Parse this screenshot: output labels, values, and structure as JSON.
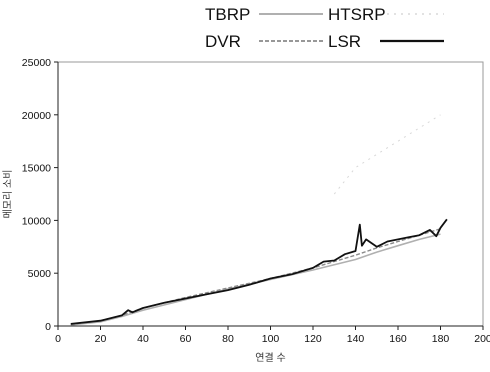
{
  "chart_data": {
    "type": "line",
    "title": "",
    "xlabel": "연결 수",
    "ylabel": "메모리 소비",
    "xlim": [
      0,
      200
    ],
    "ylim": [
      0,
      25000
    ],
    "xticks": [
      0,
      20,
      40,
      60,
      80,
      100,
      120,
      140,
      160,
      180,
      200
    ],
    "yticks": [
      0,
      5000,
      10000,
      15000,
      20000,
      25000
    ],
    "grid": false,
    "legend": "top",
    "colors": {
      "TBRP": "#b0b0b0",
      "HTSRP": "#d8d8d8",
      "DVR": "#8a8a8a",
      "LSR": "#111111"
    },
    "series": [
      {
        "name": "TBRP",
        "x": [
          6,
          20,
          30,
          40,
          60,
          80,
          100,
          120,
          140,
          150,
          160,
          170,
          180
        ],
        "y": [
          100,
          400,
          900,
          1500,
          2500,
          3500,
          4400,
          5300,
          6300,
          7000,
          7600,
          8200,
          8700
        ]
      },
      {
        "name": "HTSRP",
        "x": [
          130,
          140,
          160,
          180
        ],
        "y": [
          12500,
          15000,
          17500,
          20000
        ]
      },
      {
        "name": "DVR",
        "x": [
          6,
          20,
          30,
          40,
          60,
          80,
          100,
          120,
          140,
          150,
          160,
          170,
          180
        ],
        "y": [
          150,
          500,
          1000,
          1700,
          2700,
          3600,
          4500,
          5500,
          6700,
          7400,
          8000,
          8600,
          9200
        ]
      },
      {
        "name": "LSR",
        "x": [
          6,
          20,
          30,
          33,
          35,
          40,
          50,
          60,
          70,
          80,
          90,
          100,
          110,
          120,
          125,
          130,
          135,
          140,
          142,
          143,
          145,
          150,
          155,
          160,
          165,
          170,
          175,
          178,
          180,
          183
        ],
        "y": [
          200,
          500,
          1000,
          1500,
          1300,
          1700,
          2200,
          2600,
          3000,
          3400,
          3900,
          4500,
          4900,
          5500,
          6100,
          6200,
          6800,
          7100,
          9600,
          7600,
          8200,
          7500,
          8000,
          8200,
          8400,
          8600,
          9100,
          8500,
          9300,
          10100
        ]
      }
    ]
  }
}
